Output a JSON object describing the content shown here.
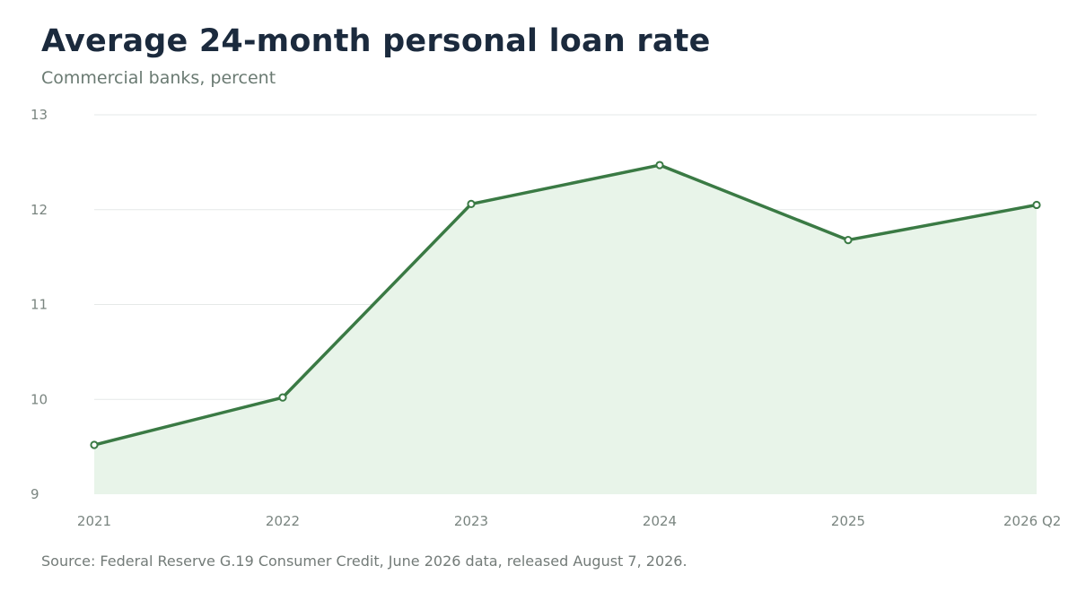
{
  "header": {
    "title": "Average 24-month personal loan rate",
    "subtitle": "Commercial banks, percent"
  },
  "footer": {
    "source": "Source: Federal Reserve G.19 Consumer Credit, June 2026 data, released August 7, 2026."
  },
  "colors": {
    "line": "#3a7a44",
    "area": "#e8f4e9",
    "grid": "#e6e9e8",
    "marker_fill": "#ffffff"
  },
  "chart_data": {
    "type": "area",
    "title": "Average 24-month personal loan rate",
    "subtitle": "Commercial banks, percent",
    "xlabel": "",
    "ylabel": "",
    "categories": [
      "2021",
      "2022",
      "2023",
      "2024",
      "2025",
      "2026 Q2"
    ],
    "series": [
      {
        "values": [
          9.52,
          10.02,
          12.06,
          12.47,
          11.68,
          12.05
        ]
      }
    ],
    "ylim": [
      9,
      13
    ],
    "yticks": [
      9,
      10,
      11,
      12,
      13
    ],
    "grid": true,
    "legend": "none"
  }
}
